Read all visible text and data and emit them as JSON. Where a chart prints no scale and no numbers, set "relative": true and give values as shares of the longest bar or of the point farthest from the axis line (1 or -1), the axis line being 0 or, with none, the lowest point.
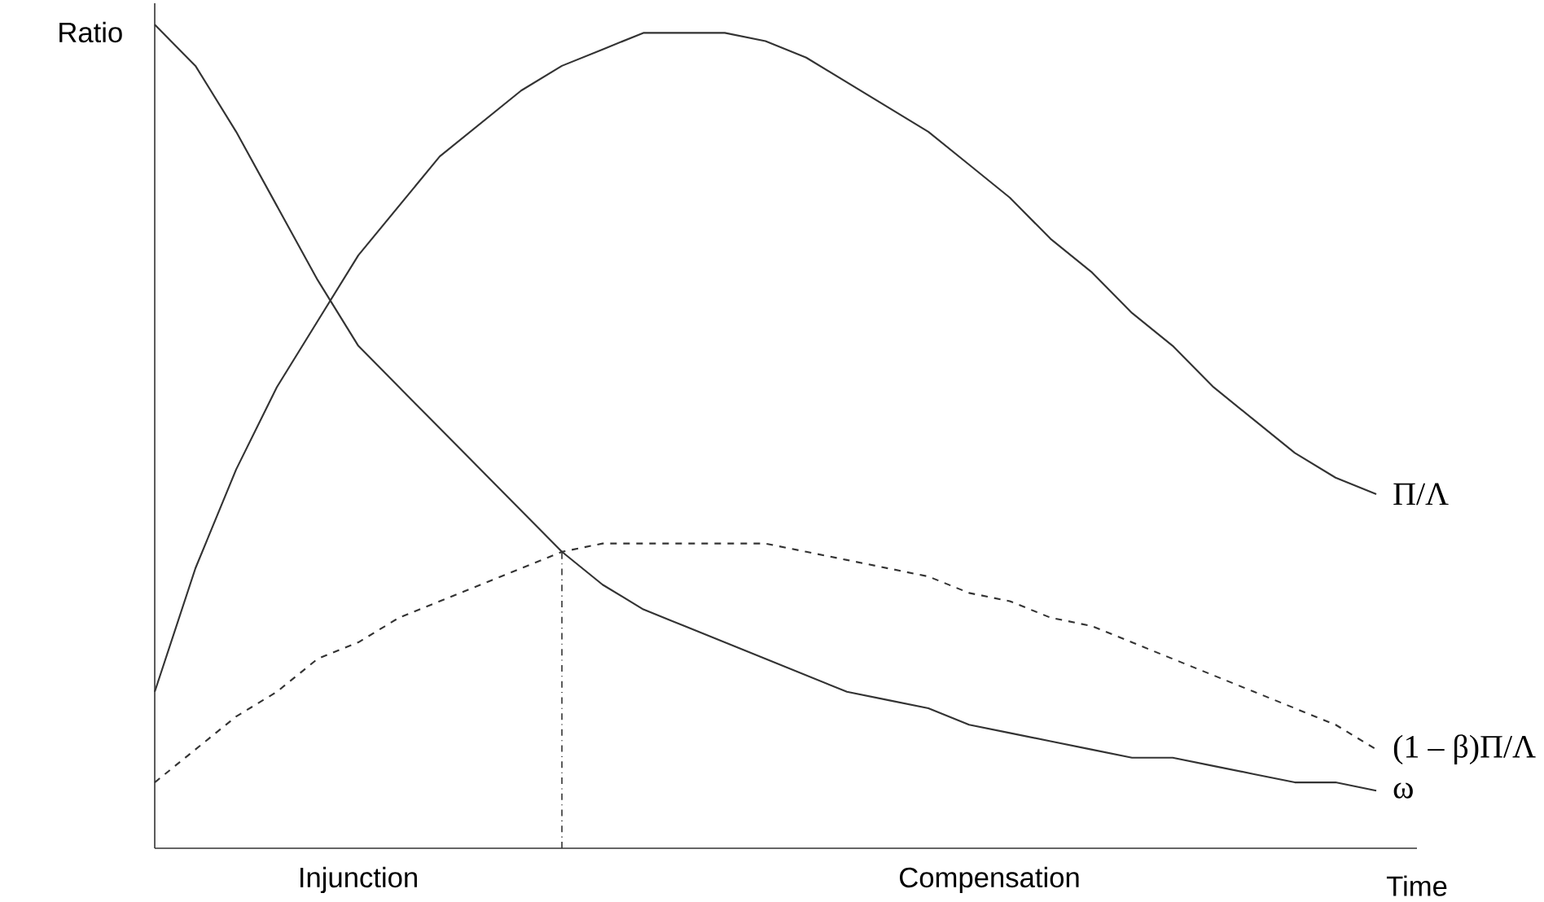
{
  "chart_data": {
    "type": "line",
    "relative": true,
    "xlabel": "Time",
    "ylabel": "Ratio",
    "categories": [
      null,
      null,
      null,
      null,
      null,
      null,
      null,
      null,
      null,
      null,
      null,
      null,
      null,
      null,
      null,
      null,
      null,
      null,
      null,
      null,
      null,
      null,
      null,
      null,
      null,
      null,
      null,
      null,
      null,
      null,
      null
    ],
    "series": [
      {
        "name": "Π/Λ",
        "color": "#333333",
        "line_style": "solid",
        "values": [
          0.19,
          0.34,
          0.46,
          0.56,
          0.64,
          0.72,
          0.78,
          0.84,
          0.88,
          0.92,
          0.95,
          0.97,
          0.99,
          0.99,
          0.99,
          0.98,
          0.96,
          0.93,
          0.9,
          0.87,
          0.83,
          0.79,
          0.74,
          0.7,
          0.65,
          0.61,
          0.56,
          0.52,
          0.48,
          0.45,
          0.43
        ]
      },
      {
        "name": "(1 – β)Π/Λ",
        "color": "#333333",
        "line_style": "dashed",
        "values": [
          0.08,
          0.12,
          0.16,
          0.19,
          0.23,
          0.25,
          0.28,
          0.3,
          0.32,
          0.34,
          0.36,
          0.37,
          0.37,
          0.37,
          0.37,
          0.37,
          0.36,
          0.35,
          0.34,
          0.33,
          0.31,
          0.3,
          0.28,
          0.27,
          0.25,
          0.23,
          0.21,
          0.19,
          0.17,
          0.15,
          0.12
        ]
      },
      {
        "name": "ω",
        "color": "#333333",
        "line_style": "solid",
        "values": [
          1.0,
          0.95,
          0.87,
          0.78,
          0.69,
          0.61,
          0.56,
          0.51,
          0.46,
          0.41,
          0.36,
          0.32,
          0.29,
          0.27,
          0.25,
          0.23,
          0.21,
          0.19,
          0.18,
          0.17,
          0.15,
          0.14,
          0.13,
          0.12,
          0.11,
          0.11,
          0.1,
          0.09,
          0.08,
          0.08,
          0.07
        ]
      }
    ],
    "annotations": [
      "Injunction",
      "Compensation"
    ],
    "marker": "none",
    "legend": false
  }
}
